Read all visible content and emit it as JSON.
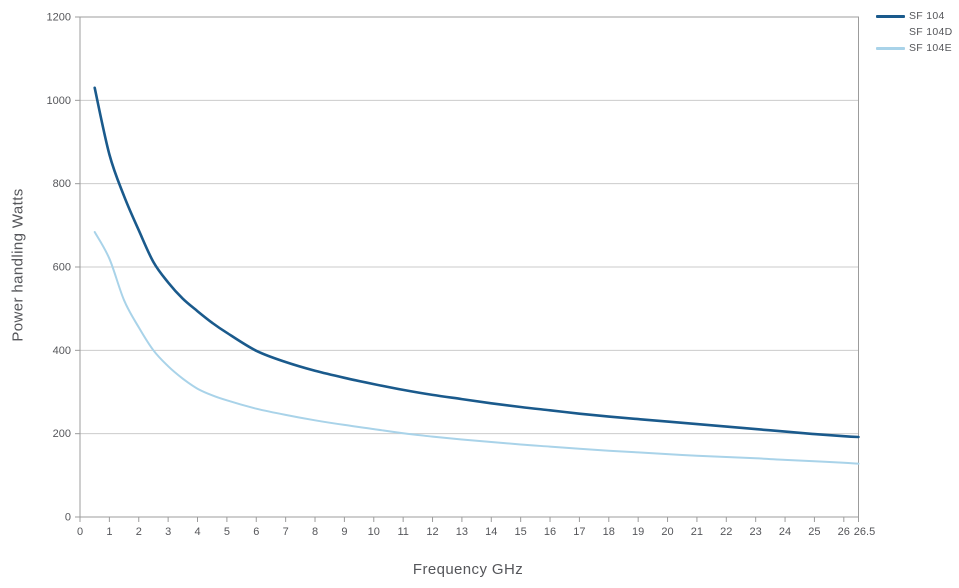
{
  "chart_data": {
    "type": "line",
    "title": "",
    "xlabel": "Frequency GHz",
    "ylabel": "Power handling Watts",
    "xlim": [
      0,
      26.5
    ],
    "ylim": [
      0,
      1200
    ],
    "xticks": [
      0,
      1,
      2,
      3,
      4,
      5,
      6,
      7,
      8,
      9,
      10,
      11,
      12,
      13,
      14,
      15,
      16,
      17,
      18,
      19,
      20,
      21,
      22,
      23,
      24,
      25,
      26,
      26.5
    ],
    "yticks": [
      0,
      200,
      400,
      600,
      800,
      1000,
      1200
    ],
    "grid": "horizontal-only",
    "legend_position": "top-right-outside",
    "x": [
      0.5,
      1,
      1.5,
      2,
      2.5,
      3,
      3.5,
      4,
      4.5,
      5,
      6,
      7,
      8,
      9,
      10,
      11,
      12,
      13,
      14,
      15,
      16,
      17,
      18,
      19,
      20,
      21,
      22,
      23,
      24,
      25,
      26,
      26.5
    ],
    "series": [
      {
        "name": "SF 104",
        "color": "#1a5a8c",
        "stroke_width": 2.6,
        "values": [
          1030,
          870,
          770,
          688,
          612,
          563,
          524,
          494,
          466,
          442,
          399,
          372,
          351,
          334,
          319,
          305,
          293,
          283,
          273,
          264,
          256,
          248,
          241,
          235,
          229,
          223,
          217,
          211,
          205,
          199,
          194,
          192
        ]
      },
      {
        "name": "SF 104D",
        "color": "#ffffff",
        "stroke_width": 2,
        "values": null
      },
      {
        "name": "SF 104E",
        "color": "#a9d3e9",
        "stroke_width": 2,
        "values": [
          684,
          620,
          520,
          455,
          400,
          362,
          332,
          308,
          292,
          280,
          260,
          245,
          232,
          221,
          211,
          201,
          193,
          186,
          180,
          174,
          169,
          164,
          159,
          155,
          151,
          147,
          144,
          141,
          137,
          134,
          130,
          128
        ]
      }
    ],
    "colors": {
      "gridline": "#cbcbcb",
      "frame": "#9c9c9c",
      "tick_text": "#55565a"
    }
  }
}
